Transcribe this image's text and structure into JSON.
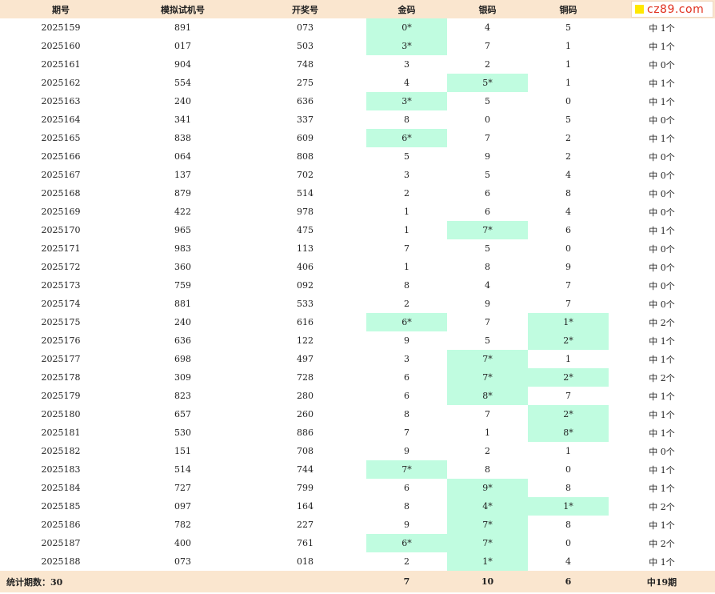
{
  "headers": [
    "期号",
    "模拟试机号",
    "开奖号",
    "金码",
    "银码",
    "铜码",
    ""
  ],
  "logo_text": "cz89.com",
  "rows": [
    {
      "issue": "2025159",
      "sim": "891",
      "draw": "073",
      "gold": "0*",
      "silver": "4",
      "bronze": "5",
      "result": "中 1个",
      "hits": [
        true,
        false,
        false
      ]
    },
    {
      "issue": "2025160",
      "sim": "017",
      "draw": "503",
      "gold": "3*",
      "silver": "7",
      "bronze": "1",
      "result": "中 1个",
      "hits": [
        true,
        false,
        false
      ]
    },
    {
      "issue": "2025161",
      "sim": "904",
      "draw": "748",
      "gold": "3",
      "silver": "2",
      "bronze": "1",
      "result": "中 0个",
      "hits": [
        false,
        false,
        false
      ]
    },
    {
      "issue": "2025162",
      "sim": "554",
      "draw": "275",
      "gold": "4",
      "silver": "5*",
      "bronze": "1",
      "result": "中 1个",
      "hits": [
        false,
        true,
        false
      ]
    },
    {
      "issue": "2025163",
      "sim": "240",
      "draw": "636",
      "gold": "3*",
      "silver": "5",
      "bronze": "0",
      "result": "中 1个",
      "hits": [
        true,
        false,
        false
      ]
    },
    {
      "issue": "2025164",
      "sim": "341",
      "draw": "337",
      "gold": "8",
      "silver": "0",
      "bronze": "5",
      "result": "中 0个",
      "hits": [
        false,
        false,
        false
      ]
    },
    {
      "issue": "2025165",
      "sim": "838",
      "draw": "609",
      "gold": "6*",
      "silver": "7",
      "bronze": "2",
      "result": "中 1个",
      "hits": [
        true,
        false,
        false
      ]
    },
    {
      "issue": "2025166",
      "sim": "064",
      "draw": "808",
      "gold": "5",
      "silver": "9",
      "bronze": "2",
      "result": "中 0个",
      "hits": [
        false,
        false,
        false
      ]
    },
    {
      "issue": "2025167",
      "sim": "137",
      "draw": "702",
      "gold": "3",
      "silver": "5",
      "bronze": "4",
      "result": "中 0个",
      "hits": [
        false,
        false,
        false
      ]
    },
    {
      "issue": "2025168",
      "sim": "879",
      "draw": "514",
      "gold": "2",
      "silver": "6",
      "bronze": "8",
      "result": "中 0个",
      "hits": [
        false,
        false,
        false
      ]
    },
    {
      "issue": "2025169",
      "sim": "422",
      "draw": "978",
      "gold": "1",
      "silver": "6",
      "bronze": "4",
      "result": "中 0个",
      "hits": [
        false,
        false,
        false
      ]
    },
    {
      "issue": "2025170",
      "sim": "965",
      "draw": "475",
      "gold": "1",
      "silver": "7*",
      "bronze": "6",
      "result": "中 1个",
      "hits": [
        false,
        true,
        false
      ]
    },
    {
      "issue": "2025171",
      "sim": "983",
      "draw": "113",
      "gold": "7",
      "silver": "5",
      "bronze": "0",
      "result": "中 0个",
      "hits": [
        false,
        false,
        false
      ]
    },
    {
      "issue": "2025172",
      "sim": "360",
      "draw": "406",
      "gold": "1",
      "silver": "8",
      "bronze": "9",
      "result": "中 0个",
      "hits": [
        false,
        false,
        false
      ]
    },
    {
      "issue": "2025173",
      "sim": "759",
      "draw": "092",
      "gold": "8",
      "silver": "4",
      "bronze": "7",
      "result": "中 0个",
      "hits": [
        false,
        false,
        false
      ]
    },
    {
      "issue": "2025174",
      "sim": "881",
      "draw": "533",
      "gold": "2",
      "silver": "9",
      "bronze": "7",
      "result": "中 0个",
      "hits": [
        false,
        false,
        false
      ]
    },
    {
      "issue": "2025175",
      "sim": "240",
      "draw": "616",
      "gold": "6*",
      "silver": "7",
      "bronze": "1*",
      "result": "中 2个",
      "hits": [
        true,
        false,
        true
      ]
    },
    {
      "issue": "2025176",
      "sim": "636",
      "draw": "122",
      "gold": "9",
      "silver": "5",
      "bronze": "2*",
      "result": "中 1个",
      "hits": [
        false,
        false,
        true
      ]
    },
    {
      "issue": "2025177",
      "sim": "698",
      "draw": "497",
      "gold": "3",
      "silver": "7*",
      "bronze": "1",
      "result": "中 1个",
      "hits": [
        false,
        true,
        false
      ]
    },
    {
      "issue": "2025178",
      "sim": "309",
      "draw": "728",
      "gold": "6",
      "silver": "7*",
      "bronze": "2*",
      "result": "中 2个",
      "hits": [
        false,
        true,
        true
      ]
    },
    {
      "issue": "2025179",
      "sim": "823",
      "draw": "280",
      "gold": "6",
      "silver": "8*",
      "bronze": "7",
      "result": "中 1个",
      "hits": [
        false,
        true,
        false
      ]
    },
    {
      "issue": "2025180",
      "sim": "657",
      "draw": "260",
      "gold": "8",
      "silver": "7",
      "bronze": "2*",
      "result": "中 1个",
      "hits": [
        false,
        false,
        true
      ]
    },
    {
      "issue": "2025181",
      "sim": "530",
      "draw": "886",
      "gold": "7",
      "silver": "1",
      "bronze": "8*",
      "result": "中 1个",
      "hits": [
        false,
        false,
        true
      ]
    },
    {
      "issue": "2025182",
      "sim": "151",
      "draw": "708",
      "gold": "9",
      "silver": "2",
      "bronze": "1",
      "result": "中 0个",
      "hits": [
        false,
        false,
        false
      ]
    },
    {
      "issue": "2025183",
      "sim": "514",
      "draw": "744",
      "gold": "7*",
      "silver": "8",
      "bronze": "0",
      "result": "中 1个",
      "hits": [
        true,
        false,
        false
      ]
    },
    {
      "issue": "2025184",
      "sim": "727",
      "draw": "799",
      "gold": "6",
      "silver": "9*",
      "bronze": "8",
      "result": "中 1个",
      "hits": [
        false,
        true,
        false
      ]
    },
    {
      "issue": "2025185",
      "sim": "097",
      "draw": "164",
      "gold": "8",
      "silver": "4*",
      "bronze": "1*",
      "result": "中 2个",
      "hits": [
        false,
        true,
        true
      ]
    },
    {
      "issue": "2025186",
      "sim": "782",
      "draw": "227",
      "gold": "9",
      "silver": "7*",
      "bronze": "8",
      "result": "中 1个",
      "hits": [
        false,
        true,
        false
      ]
    },
    {
      "issue": "2025187",
      "sim": "400",
      "draw": "761",
      "gold": "6*",
      "silver": "7*",
      "bronze": "0",
      "result": "中 2个",
      "hits": [
        true,
        true,
        false
      ]
    },
    {
      "issue": "2025188",
      "sim": "073",
      "draw": "018",
      "gold": "2",
      "silver": "1*",
      "bronze": "4",
      "result": "中 1个",
      "hits": [
        false,
        true,
        false
      ]
    }
  ],
  "footer": {
    "label": "统计期数：30",
    "gold_total": "7",
    "silver_total": "10",
    "bronze_total": "6",
    "result_total": "中19期"
  },
  "colors": {
    "header_bg": "#fae6cf",
    "hit_bg": "#c0fce0",
    "logo_text": "#e0301e",
    "logo_square": "#ffe800"
  }
}
